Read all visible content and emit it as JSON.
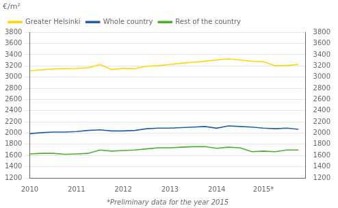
{
  "chart_data": {
    "type": "line",
    "ylabel": "€/m²",
    "footnote": "*Preliminary data for the year 2015",
    "xlim": [
      2010.0,
      2015.9
    ],
    "xticks": [
      2010,
      2011,
      2012,
      2013,
      2014,
      {
        "value": 2015,
        "label": "2015*"
      }
    ],
    "ylim": [
      1200,
      3800
    ],
    "yticks": [
      1200,
      1400,
      1600,
      1800,
      2000,
      2200,
      2400,
      2600,
      2800,
      3000,
      3200,
      3400,
      3600,
      3800
    ],
    "y2lim": [
      1200,
      3800
    ],
    "y2ticks": [
      1200,
      1400,
      1600,
      1800,
      2000,
      2200,
      2400,
      2600,
      2800,
      3000,
      3200,
      3400,
      3600,
      3800
    ],
    "grid": true,
    "legend": "upper left",
    "x": [
      2010.0,
      2010.25,
      2010.5,
      2010.75,
      2011.0,
      2011.25,
      2011.5,
      2011.75,
      2012.0,
      2012.25,
      2012.5,
      2012.75,
      2013.0,
      2013.25,
      2013.5,
      2013.75,
      2014.0,
      2014.25,
      2014.5,
      2014.75,
      2015.0,
      2015.25,
      2015.5,
      2015.75
    ],
    "series": [
      {
        "name": "Greater Helsinki",
        "color": "#FFD700",
        "values": [
          3110,
          3130,
          3145,
          3150,
          3155,
          3165,
          3225,
          3135,
          3155,
          3148,
          3195,
          3205,
          3225,
          3248,
          3265,
          3285,
          3305,
          3325,
          3305,
          3285,
          3275,
          3205,
          3205,
          3225
        ]
      },
      {
        "name": "Whole country",
        "color": "#1F5FAD",
        "values": [
          1990,
          2008,
          2018,
          2018,
          2028,
          2048,
          2058,
          2038,
          2038,
          2048,
          2078,
          2088,
          2088,
          2098,
          2108,
          2118,
          2088,
          2128,
          2118,
          2108,
          2088,
          2078,
          2088,
          2068
        ]
      },
      {
        "name": "Rest of the country",
        "color": "#4DAF2A",
        "values": [
          1628,
          1638,
          1638,
          1622,
          1628,
          1638,
          1698,
          1678,
          1688,
          1698,
          1718,
          1738,
          1738,
          1748,
          1758,
          1758,
          1728,
          1748,
          1738,
          1668,
          1678,
          1668,
          1698,
          1698
        ]
      }
    ]
  }
}
